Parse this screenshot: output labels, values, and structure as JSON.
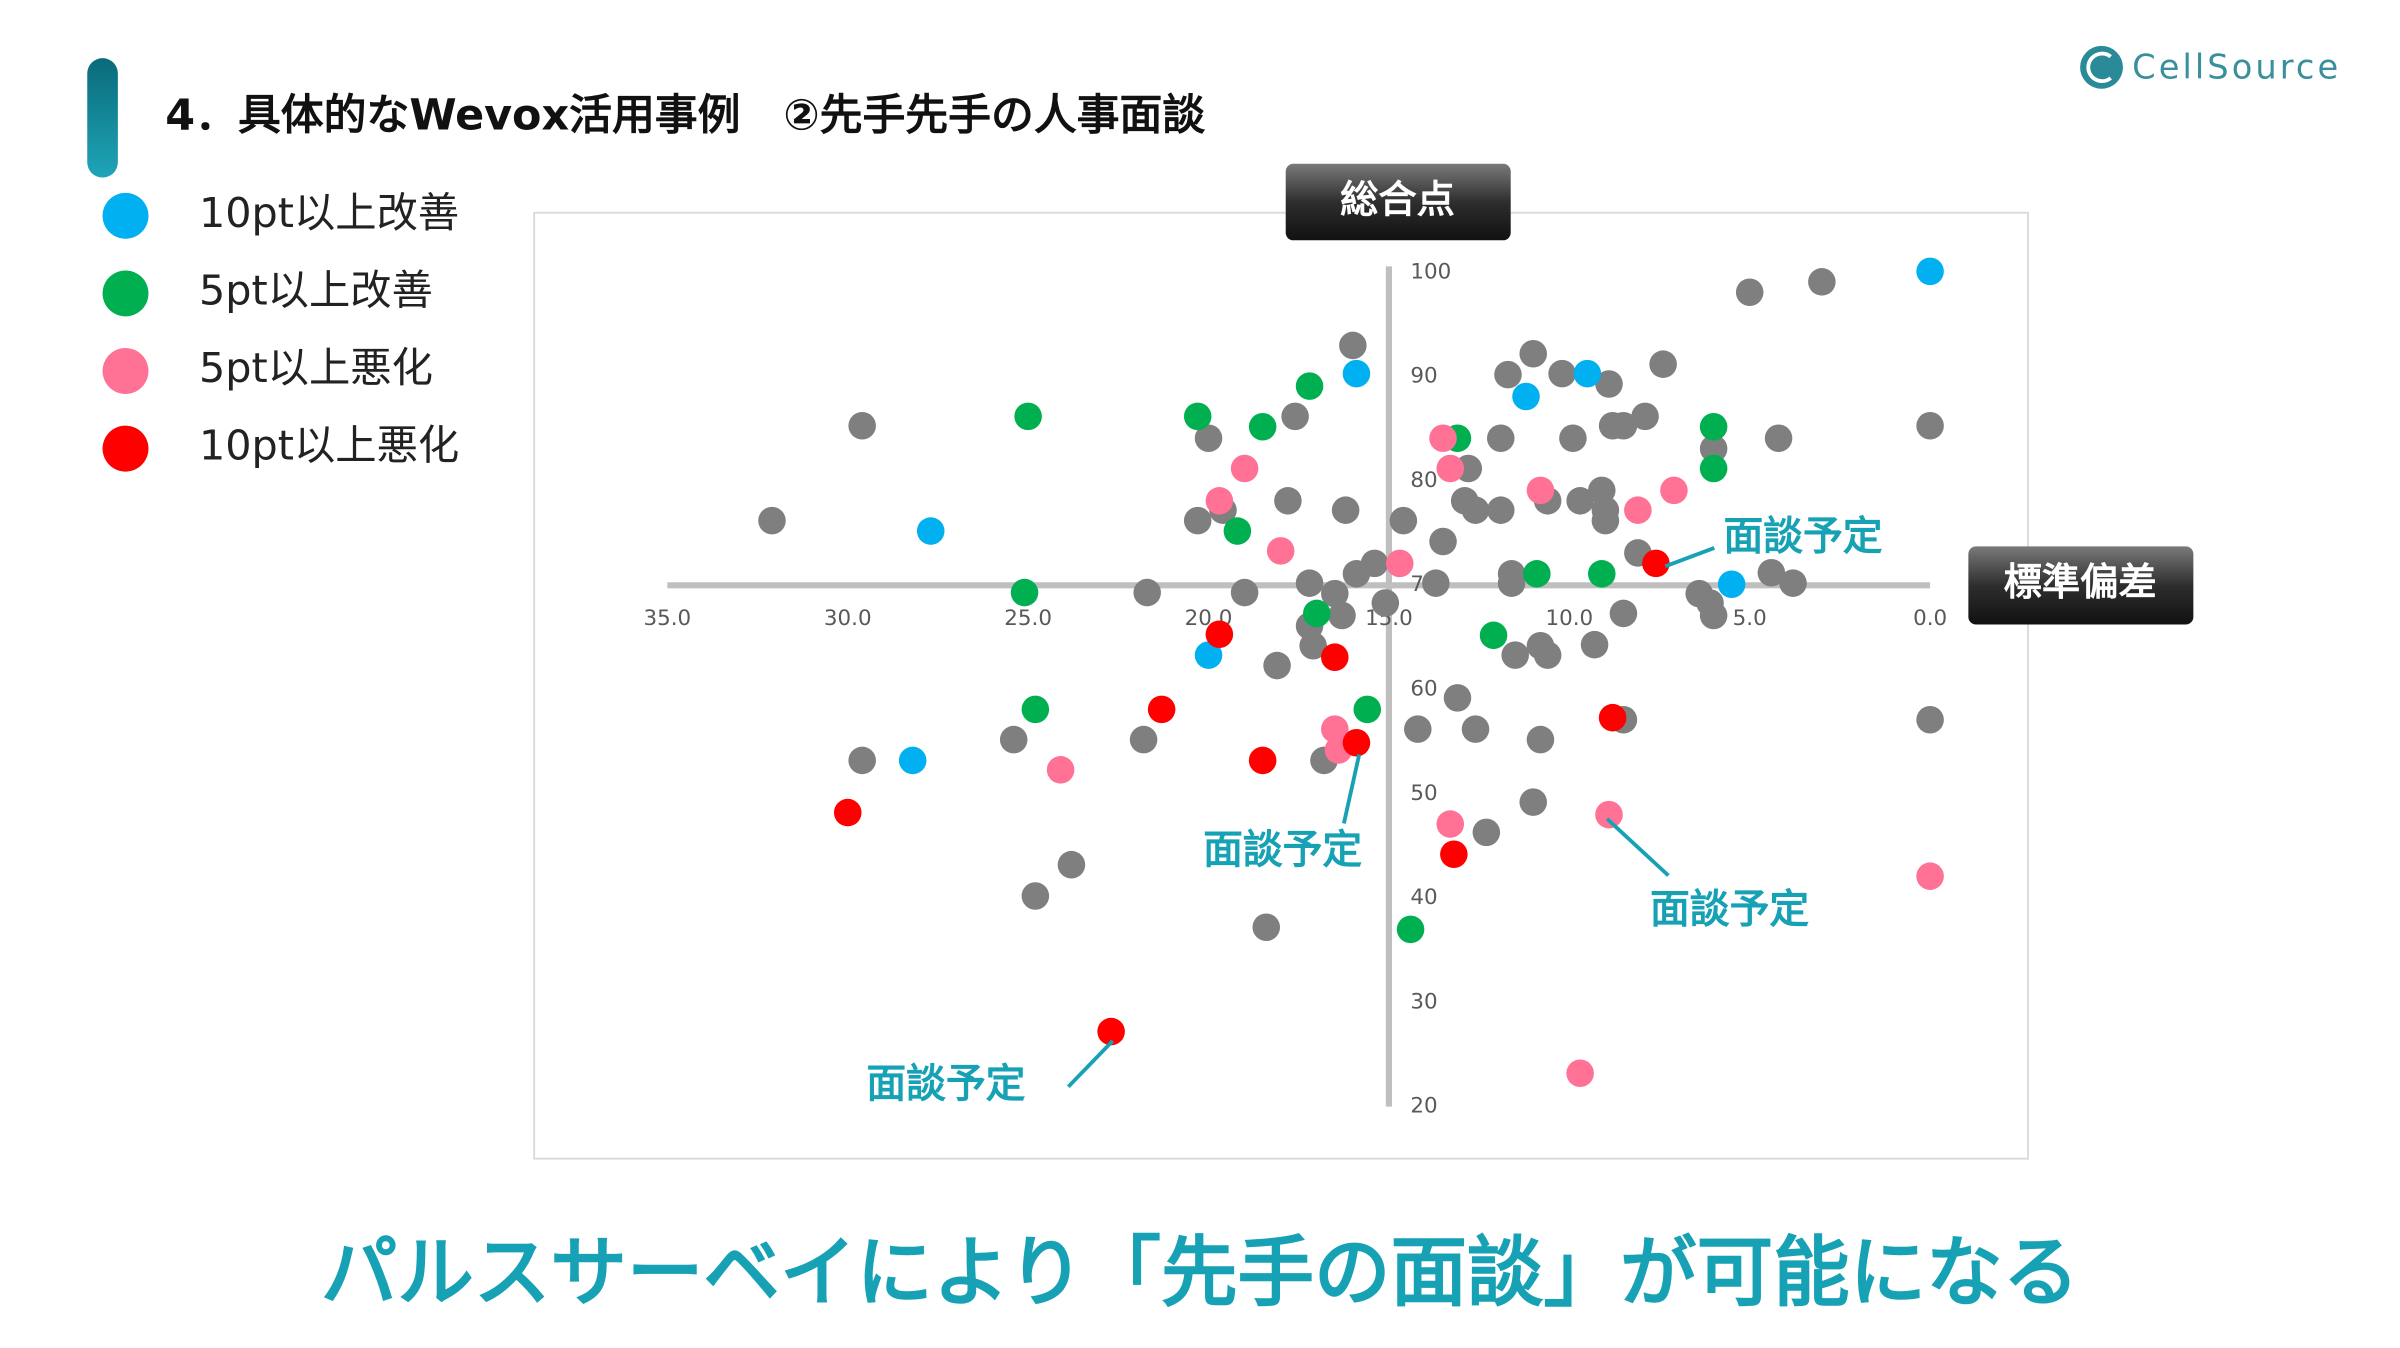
{
  "header": {
    "title": "4．具体的なWevox活用事例　②先手先手の人事面談",
    "logo": "CellSource"
  },
  "chart_data": {
    "type": "scatter",
    "x_label": "標準偏差",
    "y_label": "総合点",
    "xlim": [
      35,
      0
    ],
    "ylim": [
      20,
      100
    ],
    "xticks": [
      {
        "value": 35,
        "label": "35.0"
      },
      {
        "value": 30,
        "label": "30.0"
      },
      {
        "value": 25,
        "label": "25.0"
      },
      {
        "value": 20,
        "label": "20.0"
      },
      {
        "value": 15,
        "label": "15.0"
      },
      {
        "value": 10,
        "label": "10.0"
      },
      {
        "value": 5,
        "label": "5.0"
      },
      {
        "value": 0,
        "label": "0.0"
      }
    ],
    "yticks": [
      20,
      30,
      40,
      50,
      60,
      70,
      80,
      90,
      100
    ],
    "axis_cross": {
      "x": 15,
      "y": 70
    },
    "annotations": [
      "面談予定",
      "面談予定",
      "面談予定",
      "面談予定"
    ],
    "series": [
      {
        "color": "#7f7f7f",
        "x": [
          5.0,
          3.0,
          16.0,
          11.0,
          11.7,
          10.2,
          8.9,
          7.4,
          29.6,
          17.6,
          20.0,
          11.9,
          9.9,
          8.8,
          8.5,
          7.9,
          6.0,
          4.2,
          0.0,
          12.8,
          32.1,
          20.3,
          19.6,
          17.8,
          16.2,
          14.6,
          12.9,
          12.6,
          11.9,
          10.6,
          9.7,
          9.1,
          9.0,
          9.0,
          13.5,
          15.4,
          15.9,
          17.2,
          16.5,
          13.7,
          11.6,
          11.6,
          8.1,
          4.4,
          3.8,
          21.7,
          19.0,
          15.1,
          16.3,
          17.2,
          8.5,
          6.4,
          6.1,
          6.0,
          10.8,
          11.5,
          10.6,
          9.3,
          17.1,
          18.1,
          13.1,
          8.5,
          14.2,
          12.6,
          10.8,
          25.4,
          21.8,
          16.8,
          29.6,
          0.0,
          11.0,
          12.3,
          23.8,
          24.8,
          18.4
        ],
        "y": [
          98.1,
          99.1,
          93.0,
          92.2,
          90.2,
          90.3,
          89.3,
          91.2,
          85.3,
          86.2,
          84.1,
          84.1,
          84.1,
          85.3,
          85.3,
          86.2,
          83.1,
          84.1,
          85.3,
          81.2,
          76.2,
          76.2,
          77.2,
          78.1,
          77.2,
          76.2,
          78.1,
          77.2,
          77.2,
          78.1,
          78.1,
          79.1,
          77.2,
          76.2,
          74.2,
          72.1,
          71.1,
          70.2,
          69.2,
          70.2,
          71.1,
          70.2,
          73.1,
          71.2,
          70.2,
          69.3,
          69.3,
          68.3,
          67.1,
          66.1,
          67.3,
          69.2,
          68.3,
          67.1,
          64.2,
          63.3,
          63.3,
          64.3,
          64.2,
          62.3,
          59.2,
          57.1,
          56.2,
          56.2,
          55.2,
          55.2,
          55.2,
          53.2,
          53.2,
          57.1,
          49.2,
          46.3,
          43.2,
          40.2,
          37.2
        ]
      },
      {
        "name": "10pt以上改善",
        "color": "#00b0f0",
        "x": [
          0.0,
          15.9,
          9.5,
          11.2,
          27.7,
          5.5,
          20.0,
          28.2
        ],
        "y": [
          100.1,
          90.3,
          90.3,
          88.1,
          75.2,
          70.1,
          63.3,
          53.2
        ]
      },
      {
        "name": "5pt以上改善",
        "color": "#00b050",
        "x": [
          25.0,
          20.3,
          18.5,
          17.2,
          13.1,
          6.0,
          6.0,
          19.2,
          25.1,
          10.9,
          9.1,
          17.0,
          12.1,
          24.8,
          15.6,
          14.4
        ],
        "y": [
          86.2,
          86.2,
          85.2,
          89.1,
          84.1,
          85.2,
          81.2,
          75.2,
          69.3,
          71.1,
          71.1,
          67.3,
          65.2,
          58.1,
          58.1,
          37.0
        ]
      },
      {
        "name": "5pt以上悪化",
        "color": "#ff7195",
        "x": [
          13.5,
          13.3,
          19.0,
          19.7,
          18.0,
          14.7,
          10.8,
          8.1,
          7.1,
          16.5,
          16.4,
          24.1,
          13.3,
          8.9,
          0.0,
          9.7
        ],
        "y": [
          84.1,
          81.2,
          81.2,
          78.1,
          73.3,
          72.1,
          79.1,
          77.2,
          79.1,
          56.2,
          54.2,
          52.3,
          47.1,
          48.0,
          42.1,
          23.2
        ]
      },
      {
        "name": "10pt以上悪化",
        "color": "#ff0000",
        "x": [
          7.6,
          19.7,
          16.5,
          21.3,
          15.9,
          18.5,
          30.0,
          13.2,
          8.8,
          22.7
        ],
        "y": [
          72.1,
          65.3,
          63.1,
          58.1,
          54.9,
          53.2,
          48.2,
          44.2,
          57.3,
          27.2
        ]
      }
    ]
  },
  "footer": {
    "message": "パルスサーベイにより「先手の面談」が可能になる"
  }
}
